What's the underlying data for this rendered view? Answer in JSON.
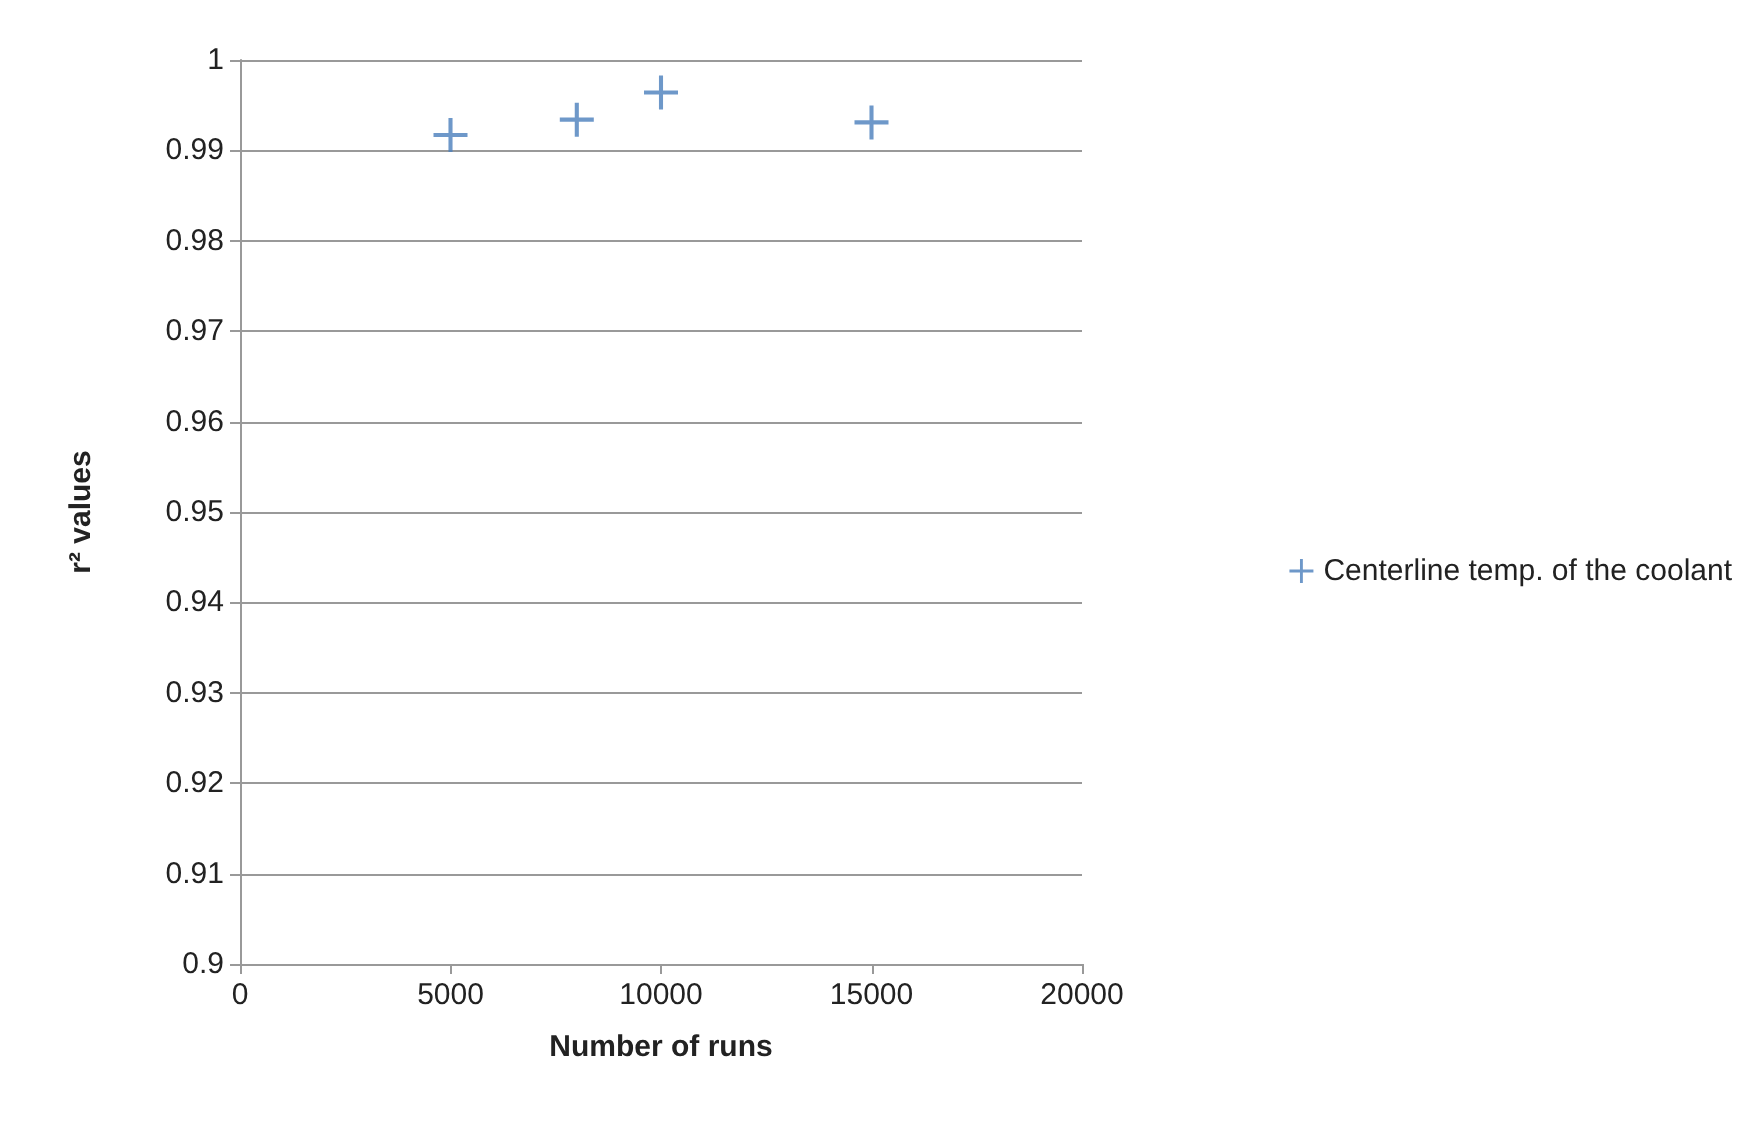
{
  "chart_data": {
    "type": "scatter",
    "xlabel": "Number of runs",
    "ylabel": "r² values",
    "x": [
      5000,
      8000,
      10000,
      15000
    ],
    "series": [
      {
        "name": "Centerline temp. of the coolant",
        "color": "#4a7ebb",
        "values": [
          0.9917,
          0.9934,
          0.9964,
          0.9931
        ]
      }
    ],
    "xlim": [
      0,
      20000
    ],
    "xticks": [
      0,
      5000,
      10000,
      15000,
      20000
    ],
    "ylim": [
      0.9,
      1
    ],
    "yticks": [
      0.9,
      0.91,
      0.92,
      0.93,
      0.94,
      0.95,
      0.96,
      0.97,
      0.98,
      0.99,
      1
    ],
    "grid": "y",
    "legend": "right",
    "marker": "cross"
  }
}
